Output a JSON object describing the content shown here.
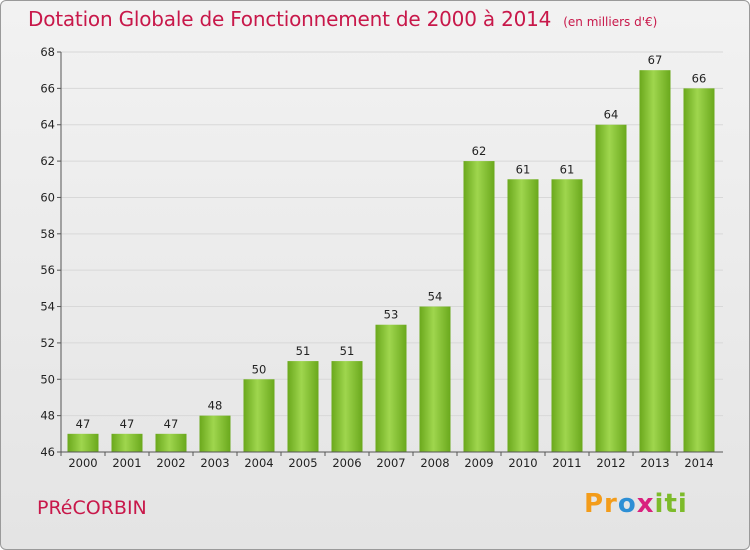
{
  "title": "Dotation Globale de Fonctionnement de 2000 à 2014",
  "subtitle": "(en milliers d'€)",
  "commune": "PRéCORBIN",
  "logo": {
    "p1": "Pr",
    "p2": "o",
    "p3": "x",
    "p4": "iti"
  },
  "colors": {
    "title": "#c8184a",
    "bar_light": "#9fd64e",
    "bar_dark": "#6aa81c",
    "grid": "#d8d8d8"
  },
  "chart_data": {
    "type": "bar",
    "categories": [
      "2000",
      "2001",
      "2002",
      "2003",
      "2004",
      "2005",
      "2006",
      "2007",
      "2008",
      "2009",
      "2010",
      "2011",
      "2012",
      "2013",
      "2014"
    ],
    "values": [
      47,
      47,
      47,
      48,
      50,
      51,
      51,
      53,
      54,
      62,
      61,
      61,
      64,
      67,
      66
    ],
    "ylim": [
      46,
      68
    ],
    "yticks": [
      46,
      48,
      50,
      52,
      54,
      56,
      58,
      60,
      62,
      64,
      66,
      68
    ],
    "grid": true,
    "data_labels": true
  }
}
